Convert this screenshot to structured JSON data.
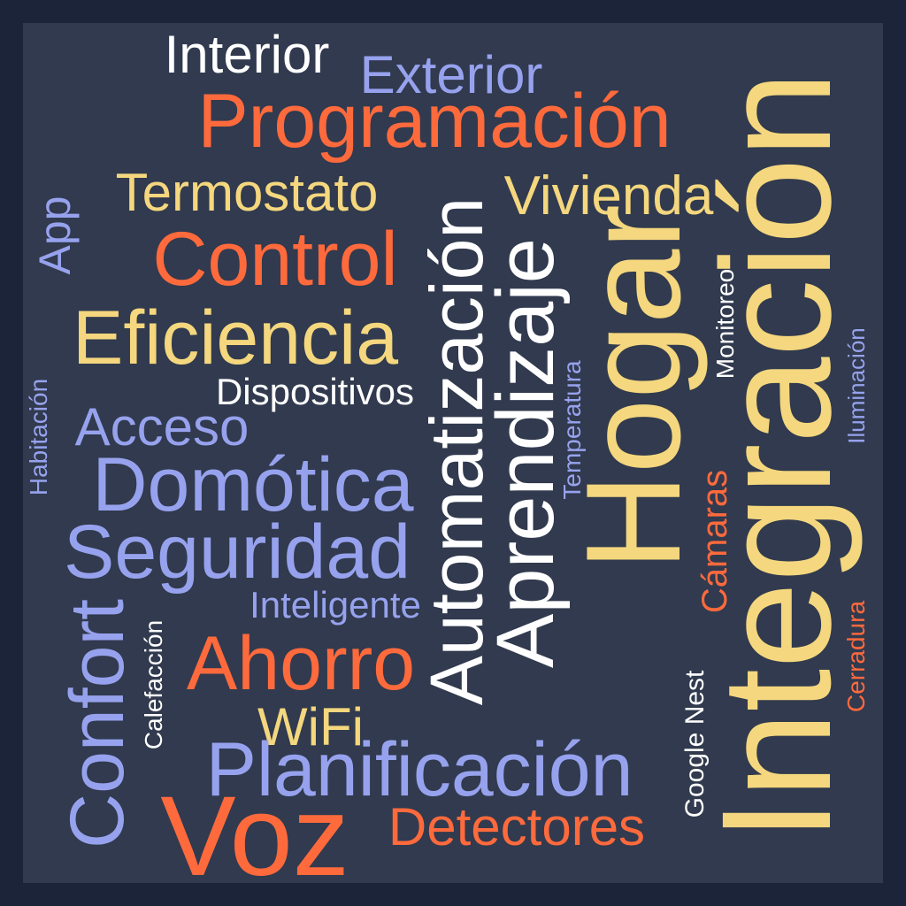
{
  "palette": {
    "background": "#1c2439",
    "panel": "#313a4e",
    "white": "#ffffff",
    "periwinkle": "#97a2ee",
    "orange": "#ff6a3d",
    "yellow": "#f4d77e"
  },
  "words": {
    "integracion": "Integración",
    "hogar": "Hogar",
    "aprendizaje": "Aprendizaje",
    "automatizacion": "Automatización",
    "voz": "Voz",
    "programacion": "Programación",
    "confort": "Confort",
    "planificacion": "Planificación",
    "seguridad": "Seguridad",
    "domotica": "Domótica",
    "eficiencia": "Eficiencia",
    "control": "Control",
    "ahorro": "Ahorro",
    "termostato": "Termostato",
    "vivienda": "Vivienda",
    "interior": "Interior",
    "exterior": "Exterior",
    "detectores": "Detectores",
    "app": "App",
    "acceso": "Acceso",
    "wifi": "WiFi",
    "camaras": "Cámaras",
    "dispositivos": "Dispositivos",
    "inteligente": "Inteligente",
    "temperatura": "Temperatura",
    "monitoreo": "Monitoreo",
    "iluminacion": "Iluminación",
    "cerradura": "Cerradura",
    "google_nest": "Google Nest",
    "calefaccion": "Calefacción",
    "habitacion": "Habitación"
  }
}
